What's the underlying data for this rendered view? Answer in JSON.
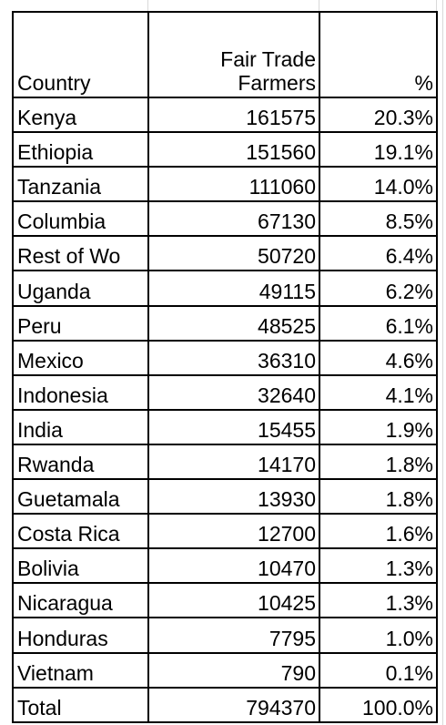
{
  "table": {
    "header": [
      "Country",
      "Fair Trade\nFarmers",
      "%"
    ],
    "rows": [
      [
        "Kenya",
        161575,
        "20.3%"
      ],
      [
        "Ethiopia",
        151560,
        "19.1%"
      ],
      [
        "Tanzania",
        111060,
        "14.0%"
      ],
      [
        "Columbia",
        67130,
        "8.5%"
      ],
      [
        "Rest of Wo",
        50720,
        "6.4%"
      ],
      [
        "Uganda",
        49115,
        "6.2%"
      ],
      [
        "Peru",
        48525,
        "6.1%"
      ],
      [
        "Mexico",
        36310,
        "4.6%"
      ],
      [
        "Indonesia",
        32640,
        "4.1%"
      ],
      [
        "India",
        15455,
        "1.9%"
      ],
      [
        "Rwanda",
        14170,
        "1.8%"
      ],
      [
        "Guetamala",
        13930,
        "1.8%"
      ],
      [
        "Costa Rica",
        12700,
        "1.6%"
      ],
      [
        "Bolivia",
        10470,
        "1.3%"
      ],
      [
        "Nicaragua",
        10425,
        "1.3%"
      ],
      [
        "Honduras",
        7795,
        "1.0%"
      ],
      [
        "Vietnam",
        790,
        "0.1%"
      ],
      [
        "Total",
        794370,
        "100.0%"
      ]
    ]
  }
}
